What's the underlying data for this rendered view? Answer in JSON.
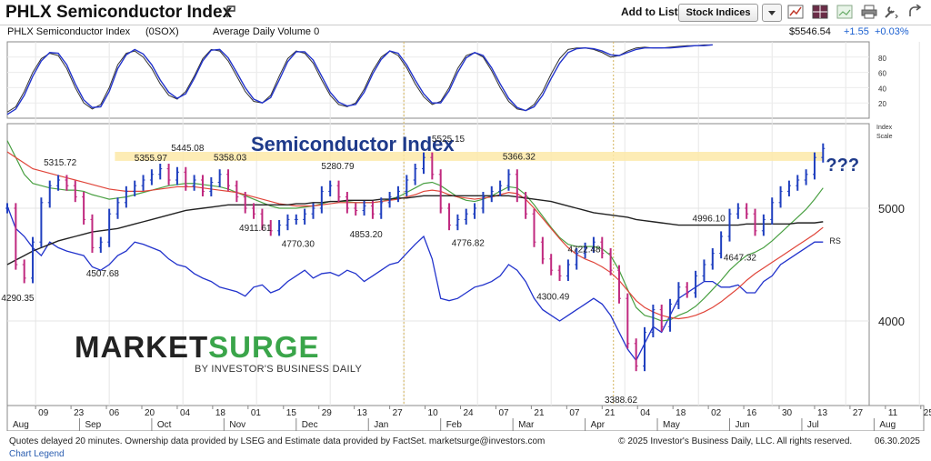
{
  "header": {
    "title": "PHLX Semiconductor Index",
    "add_to_list_label": "Add to List:",
    "list_select_value": "Stock Indices"
  },
  "subheader": {
    "symbol_label": "PHLX Semiconductor Index",
    "symbol_code": "(0SOX)",
    "volume_label": "Average Daily Volume 0",
    "price": "$5546.54",
    "change": "+1.55",
    "change_pct": "+0.03%"
  },
  "toolbar_icons": [
    "chart-icon",
    "layout-icon",
    "image-icon",
    "print-icon",
    "tools-icon",
    "share-icon"
  ],
  "colors": {
    "price_up": "#1f3fbf",
    "price_down": "#c0297f",
    "ma_red": "#e0453a",
    "ma_green": "#4aa043",
    "ma_black": "#222222",
    "rs_line": "#2233cc",
    "highlight_band": "#fde9a8",
    "annotation": "#1e3a8a",
    "positive": "#1a5fd0"
  },
  "footer": {
    "left": "Quotes delayed 20 minutes. Ownership data provided by LSEG and Estimate data provided by FactSet. marketsurge@investors.com",
    "right": "© 2025 Investor's Business Daily, LLC. All rights reserved.",
    "date": "06.30.2025",
    "legend_link": "Chart Legend"
  },
  "logo": {
    "market": "MARKET",
    "surge": "SURGE",
    "tagline": "BY INVESTOR'S BUSINESS DAILY"
  },
  "chart_data": [
    {
      "type": "line",
      "panel": "stochastic",
      "yticks": [
        20,
        40,
        60,
        80
      ],
      "ylim": [
        0,
        100
      ],
      "x": [
        0,
        3,
        6,
        9,
        12,
        15,
        18,
        21,
        24,
        27,
        30,
        33,
        36,
        39,
        42,
        45,
        48,
        51,
        54,
        57,
        60,
        63,
        66,
        69,
        72,
        75,
        78,
        81,
        84,
        87,
        90,
        93,
        96,
        99,
        102,
        105,
        108,
        111,
        114,
        117,
        120,
        123,
        126,
        129,
        132,
        135,
        138,
        141,
        144,
        147,
        150,
        153,
        156,
        159,
        162,
        165,
        168,
        171,
        174,
        177,
        180,
        183,
        186,
        189,
        192,
        195,
        198,
        201,
        204,
        207,
        210,
        213,
        216,
        219,
        222,
        225,
        228,
        231,
        234,
        237,
        240,
        243,
        246,
        249
      ],
      "series": [
        {
          "values": [
            8,
            15,
            35,
            60,
            78,
            85,
            82,
            65,
            40,
            20,
            12,
            18,
            40,
            70,
            85,
            88,
            80,
            65,
            45,
            30,
            25,
            35,
            55,
            78,
            90,
            88,
            75,
            55,
            35,
            22,
            20,
            30,
            55,
            78,
            88,
            85,
            72,
            50,
            30,
            18,
            15,
            20,
            38,
            62,
            80,
            88,
            82,
            66,
            45,
            28,
            18,
            22,
            40,
            65,
            82,
            86,
            80,
            62,
            40,
            22,
            12,
            10,
            18,
            35,
            58,
            78,
            90,
            92,
            92,
            90,
            86,
            80,
            82,
            88,
            92,
            93,
            92,
            92,
            93,
            94,
            95,
            95,
            96,
            96
          ]
        },
        {
          "values": [
            5,
            12,
            30,
            55,
            75,
            86,
            85,
            70,
            45,
            24,
            14,
            15,
            35,
            65,
            83,
            90,
            84,
            70,
            50,
            34,
            26,
            32,
            52,
            75,
            89,
            90,
            79,
            60,
            40,
            25,
            20,
            27,
            50,
            74,
            87,
            87,
            76,
            55,
            34,
            21,
            16,
            18,
            34,
            58,
            77,
            88,
            85,
            70,
            50,
            32,
            20,
            20,
            36,
            60,
            79,
            86,
            82,
            66,
            45,
            26,
            14,
            10,
            15,
            30,
            52,
            72,
            86,
            91,
            92,
            91,
            88,
            83,
            82,
            86,
            90,
            92,
            92,
            92,
            92,
            93,
            94,
            95,
            95,
            96
          ]
        }
      ]
    },
    {
      "type": "line",
      "title": "Semiconductor Index",
      "annotation": "???",
      "yticks": [
        4000,
        5000
      ],
      "ylim": [
        3250,
        5750
      ],
      "scale_label": "Index Scale",
      "rs_label": "RS",
      "xaxis": {
        "day_labels": [
          "09",
          "23",
          "06",
          "20",
          "04",
          "18",
          "01",
          "15",
          "29",
          "13",
          "27",
          "10",
          "24",
          "07",
          "21",
          "07",
          "21",
          "04",
          "18",
          "02",
          "16",
          "30",
          "13",
          "27",
          "11",
          "25",
          "0"
        ],
        "month_labels": [
          "Aug",
          "Sep",
          "Oct",
          "Nov",
          "Dec",
          "Jan",
          "Feb",
          "Mar",
          "Apr",
          "May",
          "Jun",
          "Jul",
          "Aug"
        ]
      },
      "price_labels": [
        {
          "text": "4290.35",
          "value": 4290.35,
          "x": 3
        },
        {
          "text": "5315.72",
          "value": 5315.72,
          "x": 18
        },
        {
          "text": "4507.68",
          "value": 4507.68,
          "x": 33
        },
        {
          "text": "5355.97",
          "value": 5355.97,
          "x": 50
        },
        {
          "text": "5445.08",
          "value": 5445.08,
          "x": 63
        },
        {
          "text": "5358.03",
          "value": 5358.03,
          "x": 78
        },
        {
          "text": "4911.61",
          "value": 4911.61,
          "x": 87
        },
        {
          "text": "4770.30",
          "value": 4770.3,
          "x": 102
        },
        {
          "text": "5280.79",
          "value": 5280.79,
          "x": 116
        },
        {
          "text": "4853.20",
          "value": 4853.2,
          "x": 126
        },
        {
          "text": "5525.15",
          "value": 5525.15,
          "x": 155
        },
        {
          "text": "4776.82",
          "value": 4776.82,
          "x": 162
        },
        {
          "text": "5366.32",
          "value": 5366.32,
          "x": 180
        },
        {
          "text": "4722.48",
          "value": 4722.48,
          "x": 203
        },
        {
          "text": "4300.49",
          "value": 4300.49,
          "x": 192
        },
        {
          "text": "3388.62",
          "value": 3388.62,
          "x": 216
        },
        {
          "text": "4996.10",
          "value": 4996.1,
          "x": 247
        },
        {
          "text": "4647.32",
          "value": 4647.32,
          "x": 258
        }
      ],
      "highlight_band": [
        5420,
        5500
      ],
      "x": [
        0,
        3,
        6,
        9,
        12,
        15,
        18,
        21,
        24,
        27,
        30,
        33,
        36,
        39,
        42,
        45,
        48,
        51,
        54,
        57,
        60,
        63,
        66,
        69,
        72,
        75,
        78,
        81,
        84,
        87,
        90,
        93,
        96,
        99,
        102,
        105,
        108,
        111,
        114,
        117,
        120,
        123,
        126,
        129,
        132,
        135,
        138,
        141,
        144,
        147,
        150,
        153,
        156,
        159,
        162,
        165,
        168,
        171,
        174,
        177,
        180,
        183,
        186,
        189,
        192,
        195,
        198,
        201,
        204,
        207,
        210,
        213,
        216,
        219,
        222,
        225,
        228,
        231,
        234,
        237,
        240,
        243,
        246,
        249,
        252,
        255,
        258,
        261,
        264,
        267,
        270,
        273,
        276,
        279,
        282,
        285,
        288
      ],
      "close": [
        5000,
        4500,
        4380,
        4700,
        5050,
        5200,
        5250,
        5200,
        5100,
        4900,
        4650,
        4700,
        4950,
        5050,
        5150,
        5200,
        5250,
        5300,
        5350,
        5250,
        5320,
        5200,
        5250,
        5150,
        5230,
        5300,
        5200,
        5100,
        5000,
        4950,
        4850,
        4800,
        4850,
        4900,
        4900,
        4950,
        5000,
        5150,
        5200,
        5100,
        5000,
        4980,
        5020,
        4950,
        5050,
        5100,
        5150,
        5250,
        5350,
        5450,
        5300,
        5000,
        4850,
        4900,
        4950,
        5000,
        5100,
        5150,
        5200,
        5300,
        5100,
        4950,
        4700,
        4550,
        4450,
        4400,
        4500,
        4600,
        4650,
        4700,
        4600,
        4450,
        4200,
        3800,
        3600,
        3900,
        4100,
        3950,
        4150,
        4300,
        4250,
        4400,
        4500,
        4600,
        4750,
        4950,
        5000,
        4950,
        4800,
        4900,
        5050,
        5150,
        5200,
        5250,
        5300,
        5450,
        5530
      ],
      "series": [
        {
          "name": "RS",
          "values": [
            5020,
            4820,
            4750,
            4650,
            4580,
            4700,
            4650,
            4620,
            4600,
            4580,
            4480,
            4450,
            4500,
            4580,
            4620,
            4700,
            4680,
            4650,
            4620,
            4550,
            4500,
            4480,
            4420,
            4380,
            4350,
            4300,
            4280,
            4260,
            4220,
            4300,
            4320,
            4250,
            4280,
            4350,
            4400,
            4450,
            4380,
            4420,
            4430,
            4400,
            4450,
            4420,
            4350,
            4400,
            4450,
            4500,
            4520,
            4600,
            4680,
            4750,
            4550,
            4200,
            4180,
            4200,
            4250,
            4300,
            4320,
            4350,
            4400,
            4500,
            4450,
            4350,
            4200,
            4100,
            4050,
            4000,
            4050,
            4100,
            4150,
            4200,
            4150,
            4050,
            3900,
            3750,
            3650,
            3800,
            3950,
            3900,
            4050,
            4200,
            4250,
            4300,
            4350,
            4350,
            4300,
            4300,
            4320,
            4250,
            4250,
            4350,
            4400,
            4500,
            4550,
            4600,
            4650,
            4700,
            4700
          ]
        },
        {
          "name": "",
          "values": [
            5600,
            5450,
            5300,
            5220,
            5200,
            5180,
            5170,
            5160,
            5160,
            5150,
            5120,
            5100,
            5080,
            5090,
            5100,
            5120,
            5140,
            5160,
            5180,
            5200,
            5210,
            5220,
            5220,
            5210,
            5200,
            5190,
            5170,
            5140,
            5110,
            5080,
            5050,
            5020,
            5000,
            5000,
            5000,
            5010,
            5020,
            5040,
            5060,
            5060,
            5060,
            5050,
            5050,
            5050,
            5060,
            5080,
            5100,
            5140,
            5180,
            5220,
            5230,
            5200,
            5150,
            5100,
            5070,
            5060,
            5080,
            5110,
            5150,
            5190,
            5180,
            5120,
            5030,
            4930,
            4830,
            4740,
            4680,
            4660,
            4660,
            4660,
            4640,
            4580,
            4450,
            4280,
            4120,
            4050,
            4030,
            4000,
            4010,
            4050,
            4080,
            4130,
            4200,
            4280,
            4360,
            4450,
            4520,
            4580,
            4610,
            4650,
            4710,
            4780,
            4850,
            4920,
            4990,
            5080,
            5180
          ]
        },
        {
          "name": "",
          "values": [
            5500,
            5450,
            5400,
            5350,
            5330,
            5310,
            5290,
            5270,
            5250,
            5230,
            5210,
            5190,
            5170,
            5160,
            5150,
            5150,
            5150,
            5160,
            5170,
            5180,
            5190,
            5190,
            5190,
            5180,
            5170,
            5160,
            5150,
            5140,
            5120,
            5100,
            5080,
            5060,
            5040,
            5030,
            5020,
            5020,
            5020,
            5030,
            5040,
            5050,
            5050,
            5050,
            5050,
            5050,
            5060,
            5070,
            5080,
            5100,
            5120,
            5150,
            5160,
            5150,
            5120,
            5100,
            5090,
            5080,
            5090,
            5100,
            5120,
            5140,
            5130,
            5080,
            5000,
            4910,
            4820,
            4730,
            4650,
            4590,
            4550,
            4520,
            4480,
            4430,
            4360,
            4270,
            4180,
            4120,
            4080,
            4050,
            4030,
            4020,
            4030,
            4050,
            4080,
            4120,
            4170,
            4230,
            4290,
            4360,
            4420,
            4470,
            4520,
            4570,
            4620,
            4670,
            4720,
            4770,
            4830
          ]
        },
        {
          "name": "",
          "values": [
            4500,
            4540,
            4580,
            4620,
            4650,
            4680,
            4710,
            4730,
            4750,
            4770,
            4790,
            4800,
            4810,
            4820,
            4840,
            4860,
            4880,
            4900,
            4920,
            4940,
            4960,
            4980,
            4990,
            5000,
            5010,
            5020,
            5030,
            5030,
            5030,
            5030,
            5030,
            5030,
            5030,
            5030,
            5040,
            5040,
            5050,
            5050,
            5060,
            5060,
            5070,
            5070,
            5070,
            5070,
            5080,
            5080,
            5090,
            5090,
            5100,
            5110,
            5110,
            5110,
            5110,
            5110,
            5110,
            5110,
            5110,
            5110,
            5110,
            5110,
            5100,
            5090,
            5080,
            5070,
            5060,
            5040,
            5020,
            5000,
            4980,
            4960,
            4950,
            4940,
            4930,
            4920,
            4900,
            4890,
            4880,
            4870,
            4860,
            4850,
            4850,
            4850,
            4850,
            4850,
            4850,
            4850,
            4850,
            4860,
            4860,
            4860,
            4860,
            4860,
            4860,
            4870,
            4870,
            4870,
            4880
          ]
        }
      ]
    }
  ]
}
